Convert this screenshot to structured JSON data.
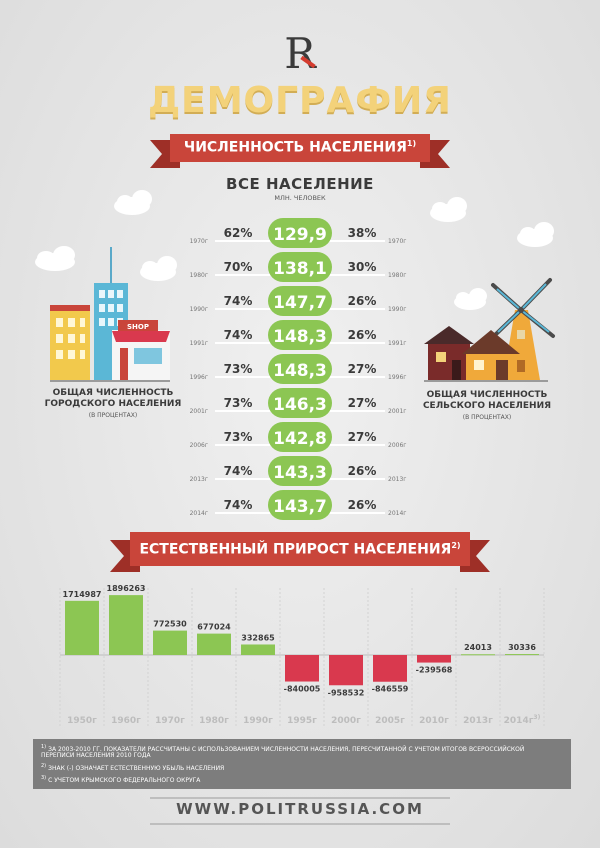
{
  "header": {
    "logo_letter": "R",
    "title": "ДЕМОГРАФИЯ",
    "section1_title": "ЧИСЛЕННОСТЬ НАСЕЛЕНИЯ",
    "section1_sup": "1)",
    "section2_title": "ЕСТЕСТВЕННЫЙ ПРИРОСТ НАСЕЛЕНИЯ",
    "section2_sup": "2)"
  },
  "population": {
    "heading": "ВСЕ НАСЕЛЕНИЕ",
    "unit": "МЛН. ЧЕЛОВЕК",
    "urban_caption_line1": "ОБЩАЯ ЧИСЛЕННОСТЬ",
    "urban_caption_line2": "ГОРОДСКОГО НАСЕЛЕНИЯ",
    "urban_caption_sub": "(В ПРОЦЕНТАХ)",
    "rural_caption_line1": "ОБЩАЯ ЧИСЛЕННОСТЬ",
    "rural_caption_line2": "СЕЛЬСКОГО НАСЕЛЕНИЯ",
    "rural_caption_sub": "(В ПРОЦЕНТАХ)",
    "shop_label": "SHOP"
  },
  "chart_data": [
    {
      "type": "table",
      "title": "ВСЕ НАСЕЛЕНИЕ",
      "columns": [
        "year",
        "urban_percent",
        "total_population",
        "rural_percent"
      ],
      "rows": [
        {
          "year": "1970г",
          "urban": "62%",
          "total": "129,9",
          "rural": "38%"
        },
        {
          "year": "1980г",
          "urban": "70%",
          "total": "138,1",
          "rural": "30%"
        },
        {
          "year": "1990г",
          "urban": "74%",
          "total": "147,7",
          "rural": "26%"
        },
        {
          "year": "1991г",
          "urban": "74%",
          "total": "148,3",
          "rural": "26%"
        },
        {
          "year": "1996г",
          "urban": "73%",
          "total": "148,3",
          "rural": "27%"
        },
        {
          "year": "2001г",
          "urban": "73%",
          "total": "146,3",
          "rural": "27%"
        },
        {
          "year": "2006г",
          "urban": "73%",
          "total": "142,8",
          "rural": "27%"
        },
        {
          "year": "2013г",
          "urban": "74%",
          "total": "143,3",
          "rural": "26%"
        },
        {
          "year": "2014г",
          "urban": "74%",
          "total": "143,7",
          "rural": "26%"
        }
      ]
    },
    {
      "type": "bar",
      "title": "ЕСТЕСТВЕННЫЙ ПРИРОСТ НАСЕЛЕНИЯ",
      "categories": [
        "1950г",
        "1960г",
        "1970г",
        "1980г",
        "1990г",
        "1995г",
        "2000г",
        "2005г",
        "2010г",
        "2013г",
        "2014г"
      ],
      "category_sups": [
        "",
        "",
        "",
        "",
        "",
        "",
        "",
        "",
        "",
        "",
        "3)"
      ],
      "values": [
        1714987,
        1896263,
        772530,
        677024,
        332865,
        -840005,
        -958532,
        -846559,
        -239568,
        24013,
        30336
      ],
      "labels": [
        "1714987",
        "1896263",
        "772530",
        "677024",
        "332865",
        "-840005",
        "-958532",
        "-846559",
        "-239568",
        "24013",
        "30336"
      ],
      "ylim": [
        -1000000,
        2000000
      ],
      "positive_color": "#8cc653",
      "negative_color": "#d9394e"
    }
  ],
  "notes": [
    {
      "sup": "1)",
      "text": "ЗА 2003-2010 ГГ. ПОКАЗАТЕЛИ РАССЧИТАНЫ С ИСПОЛЬЗОВАНИЕМ ЧИСЛЕННОСТИ НАСЕЛЕНИЯ, ПЕРЕСЧИТАННОЙ С УЧЕТОМ ИТОГОВ ВСЕРОССИЙСКОЙ"
    },
    {
      "sup": "",
      "text": "ПЕРЕПИСИ НАСЕЛЕНИЯ 2010 ГОДА"
    },
    {
      "sup": "2)",
      "text": "ЗНАК (-) ОЗНАЧАЕТ ЕСТЕСТВЕННУЮ УБЫЛЬ НАСЕЛЕНИЯ"
    },
    {
      "sup": "3)",
      "text": "С УЧЕТОМ КРЫМСКОГО ФЕДЕРАЛЬНОГО ОКРУГА"
    }
  ],
  "footer": {
    "url": "WWW.POLITRUSSIA.COM"
  },
  "colors": {
    "green": "#8cc653",
    "red": "#d9394e",
    "ribbon": "#c9453a",
    "title": "#f3d27a"
  }
}
